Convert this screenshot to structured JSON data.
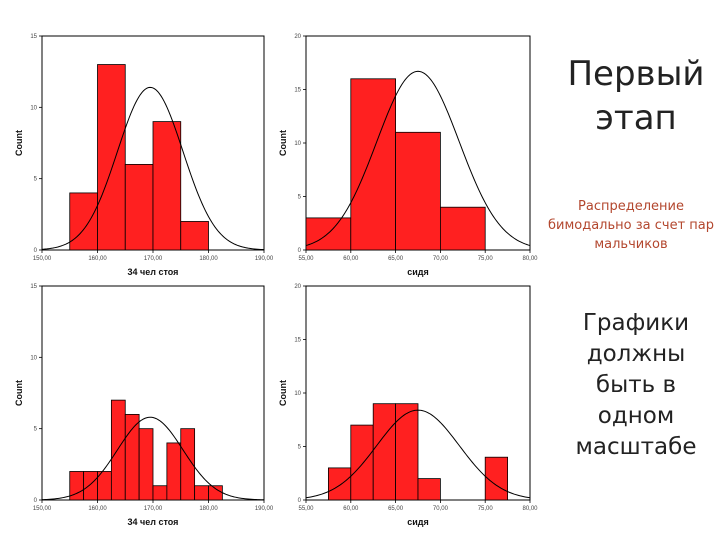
{
  "slide": {
    "title": "Первый этап",
    "note": "Распределение бимодально за счет пар мальчиков",
    "scale_note": "Графики должны быть в одном масштабе"
  },
  "colors": {
    "bar": "#ff2020",
    "bar_edge": "#000000",
    "curve": "#000000"
  },
  "chart_data": [
    {
      "type": "bar",
      "subtype": "histogram",
      "xlabel": "34 чел стоя",
      "ylabel": "Count",
      "xlim": [
        150,
        190
      ],
      "ylim": [
        0,
        15
      ],
      "xticks": [
        "150,00",
        "160,00",
        "170,00",
        "180,00",
        "190,00"
      ],
      "yticks": [
        "0",
        "5",
        "10",
        "15"
      ],
      "bin_edges": [
        155,
        160,
        165,
        170,
        175,
        180
      ],
      "values": [
        4,
        13,
        6,
        9,
        2
      ],
      "normal_curve": {
        "mean": 169.5,
        "sd": 5.9,
        "peak": 11.4
      }
    },
    {
      "type": "bar",
      "subtype": "histogram",
      "xlabel": "сидя",
      "ylabel": "Count",
      "xlim": [
        55,
        80
      ],
      "ylim": [
        0,
        20
      ],
      "xticks": [
        "55,00",
        "60,00",
        "65,00",
        "70,00",
        "75,00",
        "80,00"
      ],
      "yticks": [
        "0",
        "5",
        "10",
        "15",
        "20"
      ],
      "bin_edges": [
        55,
        60,
        65,
        70,
        75,
        80
      ],
      "values": [
        3,
        16,
        11,
        4,
        0
      ],
      "normal_curve": {
        "mean": 67.5,
        "sd": 4.6,
        "peak": 16.7
      }
    },
    {
      "type": "bar",
      "subtype": "histogram",
      "xlabel": "34 чел стоя",
      "ylabel": "Count",
      "xlim": [
        150,
        190
      ],
      "ylim": [
        0,
        15
      ],
      "xticks": [
        "150,00",
        "160,00",
        "170,00",
        "180,00",
        "190,00"
      ],
      "yticks": [
        "0",
        "5",
        "10",
        "15"
      ],
      "bin_edges": [
        155,
        157.5,
        160,
        162.5,
        165,
        167.5,
        170,
        172.5,
        175,
        177.5,
        180,
        182.5,
        185
      ],
      "values": [
        2,
        2,
        2,
        7,
        6,
        5,
        1,
        4,
        5,
        1,
        1,
        0
      ],
      "normal_curve": {
        "mean": 169.5,
        "sd": 5.9,
        "peak": 5.8
      }
    },
    {
      "type": "bar",
      "subtype": "histogram",
      "xlabel": "сидя",
      "ylabel": "Count",
      "xlim": [
        55,
        80
      ],
      "ylim": [
        0,
        20
      ],
      "xticks": [
        "55,00",
        "60,00",
        "65,00",
        "70,00",
        "75,00",
        "80,00"
      ],
      "yticks": [
        "0",
        "5",
        "10",
        "15",
        "20"
      ],
      "bin_edges": [
        57.5,
        60,
        62.5,
        65,
        67.5,
        70,
        72.5,
        75,
        77.5,
        80
      ],
      "values": [
        3,
        7,
        9,
        9,
        2,
        0,
        0,
        4,
        0
      ],
      "normal_curve": {
        "mean": 67.5,
        "sd": 4.6,
        "peak": 8.4
      }
    }
  ]
}
